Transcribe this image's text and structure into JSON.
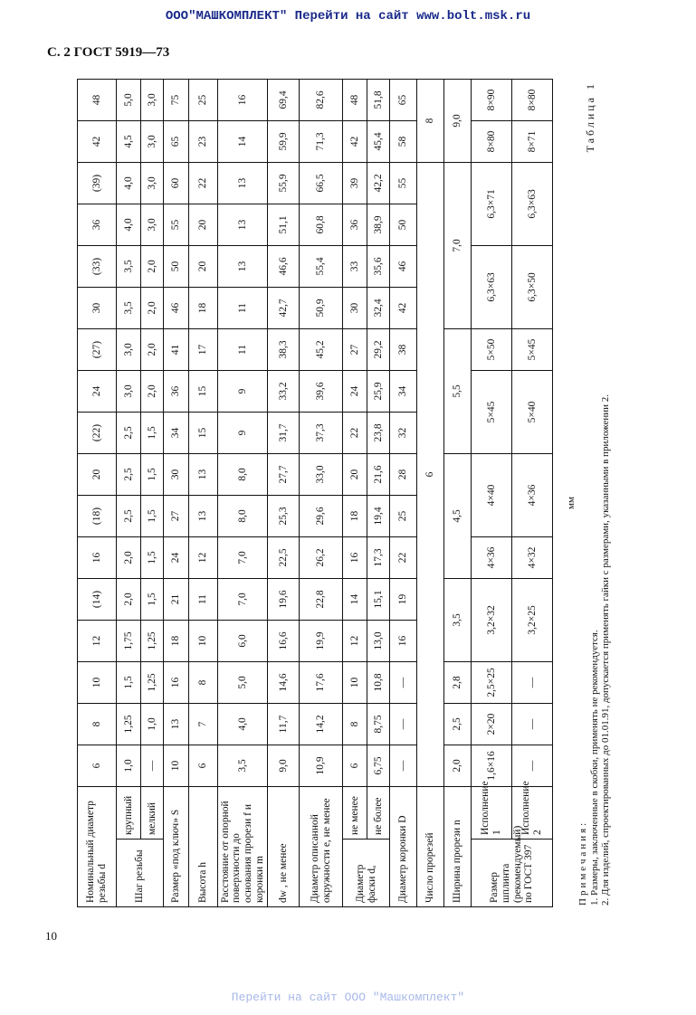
{
  "banner": "ООО\"МАШКОМПЛЕКТ\" Перейти на сайт www.bolt.msk.ru",
  "page_header": "С. 2 ГОСТ 5919—73",
  "page_number": "10",
  "footer_link": "Перейти на сайт ООО \"Машкомплект\"",
  "table_caption": "Таблица 1",
  "units": "мм",
  "table": {
    "rows": [
      {
        "label": "Номинальный диаметр резьбы d",
        "cells": [
          [
            "6"
          ],
          [
            "8"
          ],
          [
            "10"
          ],
          [
            "12"
          ],
          [
            "(14)"
          ],
          [
            "16"
          ],
          [
            "(18)"
          ],
          [
            "20"
          ],
          [
            "(22)"
          ],
          [
            "24"
          ],
          [
            "(27)"
          ],
          [
            "30"
          ],
          [
            "(33)"
          ],
          [
            "36"
          ],
          [
            "(39)"
          ],
          [
            "42"
          ],
          [
            "48"
          ]
        ]
      },
      {
        "group": "Шаг резьбы",
        "group_rows": 2,
        "sub": "крупный",
        "cells": [
          [
            "1,0"
          ],
          [
            "1,25"
          ],
          [
            "1,5"
          ],
          [
            "1,75"
          ],
          [
            "2,0"
          ],
          [
            "2,0"
          ],
          [
            "2,5"
          ],
          [
            "2,5"
          ],
          [
            "2,5"
          ],
          [
            "3,0"
          ],
          [
            "3,0"
          ],
          [
            "3,5"
          ],
          [
            "3,5"
          ],
          [
            "4,0"
          ],
          [
            "4,0"
          ],
          [
            "4,5"
          ],
          [
            "5,0"
          ]
        ]
      },
      {
        "sub": "мелкий",
        "cells": [
          [
            "—"
          ],
          [
            "1,0"
          ],
          [
            "1,25"
          ],
          [
            "1,25"
          ],
          [
            "1,5"
          ],
          [
            "1,5"
          ],
          [
            "1,5"
          ],
          [
            "1,5"
          ],
          [
            "1,5"
          ],
          [
            "2,0"
          ],
          [
            "2,0"
          ],
          [
            "2,0"
          ],
          [
            "2,0"
          ],
          [
            "3,0"
          ],
          [
            "3,0"
          ],
          [
            "3,0"
          ],
          [
            "3,0"
          ]
        ]
      },
      {
        "label": "Размер «под ключ» S",
        "cells": [
          [
            "10"
          ],
          [
            "13"
          ],
          [
            "16"
          ],
          [
            "18"
          ],
          [
            "21"
          ],
          [
            "24"
          ],
          [
            "27"
          ],
          [
            "30"
          ],
          [
            "34"
          ],
          [
            "36"
          ],
          [
            "41"
          ],
          [
            "46"
          ],
          [
            "50"
          ],
          [
            "55"
          ],
          [
            "60"
          ],
          [
            "65"
          ],
          [
            "75"
          ]
        ]
      },
      {
        "label": "Высота h",
        "cells": [
          [
            "6"
          ],
          [
            "7"
          ],
          [
            "8"
          ],
          [
            "10"
          ],
          [
            "11"
          ],
          [
            "12"
          ],
          [
            "13"
          ],
          [
            "13"
          ],
          [
            "15"
          ],
          [
            "15"
          ],
          [
            "17"
          ],
          [
            "18"
          ],
          [
            "20"
          ],
          [
            "20"
          ],
          [
            "22"
          ],
          [
            "23"
          ],
          [
            "25"
          ]
        ]
      },
      {
        "label": "Расстояние от опорной поверхности до основания прорези f и коронки m",
        "cells": [
          [
            "3,5"
          ],
          [
            "4,0"
          ],
          [
            "5,0"
          ],
          [
            "6,0"
          ],
          [
            "7,0"
          ],
          [
            "7,0"
          ],
          [
            "8,0"
          ],
          [
            "8,0"
          ],
          [
            "9"
          ],
          [
            "9"
          ],
          [
            "11"
          ],
          [
            "11"
          ],
          [
            "13"
          ],
          [
            "13"
          ],
          [
            "13"
          ],
          [
            "14"
          ],
          [
            "16"
          ]
        ]
      },
      {
        "label": "dw , не менее",
        "cells": [
          [
            "9,0"
          ],
          [
            "11,7"
          ],
          [
            "14,6"
          ],
          [
            "16,6"
          ],
          [
            "19,6"
          ],
          [
            "22,5"
          ],
          [
            "25,3"
          ],
          [
            "27,7"
          ],
          [
            "31,7"
          ],
          [
            "33,2"
          ],
          [
            "38,3"
          ],
          [
            "42,7"
          ],
          [
            "46,6"
          ],
          [
            "51,1"
          ],
          [
            "55,9"
          ],
          [
            "59,9"
          ],
          [
            "69,4"
          ]
        ]
      },
      {
        "label": "Диаметр описанной окружности e, не менее",
        "cells": [
          [
            "10,9"
          ],
          [
            "14,2"
          ],
          [
            "17,6"
          ],
          [
            "19,9"
          ],
          [
            "22,8"
          ],
          [
            "26,2"
          ],
          [
            "29,6"
          ],
          [
            "33,0"
          ],
          [
            "37,3"
          ],
          [
            "39,6"
          ],
          [
            "45,2"
          ],
          [
            "50,9"
          ],
          [
            "55,4"
          ],
          [
            "60,8"
          ],
          [
            "66,5"
          ],
          [
            "71,3"
          ],
          [
            "82,6"
          ]
        ]
      },
      {
        "group": "Диаметр фаски dₐ",
        "group_rows": 2,
        "sub": "не менее",
        "cells": [
          [
            "6"
          ],
          [
            "8"
          ],
          [
            "10"
          ],
          [
            "12"
          ],
          [
            "14"
          ],
          [
            "16"
          ],
          [
            "18"
          ],
          [
            "20"
          ],
          [
            "22"
          ],
          [
            "24"
          ],
          [
            "27"
          ],
          [
            "30"
          ],
          [
            "33"
          ],
          [
            "36"
          ],
          [
            "39"
          ],
          [
            "42"
          ],
          [
            "48"
          ]
        ]
      },
      {
        "sub": "не более",
        "cells": [
          [
            "6,75"
          ],
          [
            "8,75"
          ],
          [
            "10,8"
          ],
          [
            "13,0"
          ],
          [
            "15,1"
          ],
          [
            "17,3"
          ],
          [
            "19,4"
          ],
          [
            "21,6"
          ],
          [
            "23,8"
          ],
          [
            "25,9"
          ],
          [
            "29,2"
          ],
          [
            "32,4"
          ],
          [
            "35,6"
          ],
          [
            "38,9"
          ],
          [
            "42,2"
          ],
          [
            "45,4"
          ],
          [
            "51,8"
          ]
        ]
      },
      {
        "label": "Диаметр коронки D",
        "cells": [
          [
            "—"
          ],
          [
            "—"
          ],
          [
            "—"
          ],
          [
            "16"
          ],
          [
            "19"
          ],
          [
            "22"
          ],
          [
            "25"
          ],
          [
            "28"
          ],
          [
            "32"
          ],
          [
            "34"
          ],
          [
            "38"
          ],
          [
            "42"
          ],
          [
            "46"
          ],
          [
            "50"
          ],
          [
            "55"
          ],
          [
            "58"
          ],
          [
            "65"
          ]
        ]
      },
      {
        "label": "Число прорезей",
        "cells": [
          [
            "6",
            15
          ],
          [
            "8",
            2
          ]
        ]
      },
      {
        "label": "Ширина прорези n",
        "cells": [
          [
            "2,0"
          ],
          [
            "2,5"
          ],
          [
            "2,8"
          ],
          [
            "3,5",
            2
          ],
          [
            "4,5",
            3
          ],
          [
            "5,5",
            3
          ],
          [
            "7,0",
            4
          ],
          [
            "9,0",
            2
          ]
        ]
      },
      {
        "group": "Размер шплинта (рекомендуемый) по ГОСТ 397",
        "group_rows": 2,
        "sub": "Исполнение 1",
        "cells": [
          [
            "1,6×16"
          ],
          [
            "2×20"
          ],
          [
            "2,5×25"
          ],
          [
            "3,2×32",
            2
          ],
          [
            "4×36"
          ],
          [
            "4×40",
            2
          ],
          [
            "5×45",
            2
          ],
          [
            "5×50"
          ],
          [
            "6,3×63",
            2
          ],
          [
            "6,3×71",
            2
          ],
          [
            "8×80"
          ],
          [
            "8×90"
          ]
        ]
      },
      {
        "sub": "Исполнение 2",
        "cells": [
          [
            "—"
          ],
          [
            "—"
          ],
          [
            "—"
          ],
          [
            "3,2×25",
            2
          ],
          [
            "4×32"
          ],
          [
            "4×36",
            2
          ],
          [
            "5×40",
            2
          ],
          [
            "5×45"
          ],
          [
            "6,3×50",
            2
          ],
          [
            "6,3×63",
            2
          ],
          [
            "8×71"
          ],
          [
            "8×80"
          ]
        ]
      }
    ]
  },
  "notes": {
    "title": "Примечания:",
    "items": [
      "1. Размеры, заключенные в скобки, применять не рекомендуется.",
      "2. Для изделий, спроектированных до 01.01.91, допускается применять гайки с размерами, указанными в приложении 2."
    ]
  }
}
